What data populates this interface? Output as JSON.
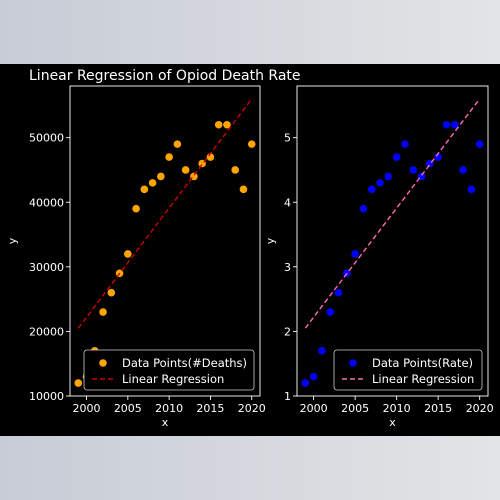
{
  "title": "Linear Regression of Opiod Death Rate",
  "chart_data": [
    {
      "type": "scatter",
      "xlabel": "x",
      "ylabel": "y",
      "xlim": [
        1998,
        2021
      ],
      "ylim": [
        10000,
        58000
      ],
      "xticks": [
        2000,
        2005,
        2010,
        2015,
        2020
      ],
      "yticks": [
        10000,
        20000,
        30000,
        40000,
        50000
      ],
      "legend_position": "lower-right",
      "series": [
        {
          "name": "Data Points(#Deaths)",
          "kind": "points",
          "color": "#ffa500",
          "x": [
            1999,
            2000,
            2001,
            2002,
            2003,
            2004,
            2005,
            2006,
            2007,
            2008,
            2009,
            2010,
            2011,
            2012,
            2013,
            2014,
            2015,
            2016,
            2017,
            2018,
            2019,
            2020
          ],
          "y": [
            12000,
            13000,
            17000,
            23000,
            26000,
            29000,
            32000,
            39000,
            42000,
            43000,
            44000,
            47000,
            49000,
            45000,
            44000,
            46000,
            47000,
            52000,
            52000,
            45000,
            42000,
            49000
          ]
        },
        {
          "name": "Linear Regression",
          "kind": "line",
          "style": "dashed",
          "color": "#cc0000",
          "x": [
            1999,
            2020
          ],
          "y": [
            20500,
            56000
          ]
        }
      ]
    },
    {
      "type": "scatter",
      "xlabel": "x",
      "ylabel": "y",
      "xlim": [
        1998,
        2021
      ],
      "ylim": [
        1,
        5.8
      ],
      "xticks": [
        2000,
        2005,
        2010,
        2015,
        2020
      ],
      "yticks": [
        1,
        2,
        3,
        4,
        5
      ],
      "legend_position": "lower-right",
      "series": [
        {
          "name": "Data Points(Rate)",
          "kind": "points",
          "color": "#0000ff",
          "x": [
            1999,
            2000,
            2001,
            2002,
            2003,
            2004,
            2005,
            2006,
            2007,
            2008,
            2009,
            2010,
            2011,
            2012,
            2013,
            2014,
            2015,
            2016,
            2017,
            2018,
            2019,
            2020
          ],
          "y": [
            1.2,
            1.3,
            1.7,
            2.3,
            2.6,
            2.9,
            3.2,
            3.9,
            4.2,
            4.3,
            4.4,
            4.7,
            4.9,
            4.5,
            4.4,
            4.6,
            4.7,
            5.2,
            5.2,
            4.5,
            4.2,
            4.9
          ]
        },
        {
          "name": "Linear Regression",
          "kind": "line",
          "style": "dashed",
          "color": "#ff69b4",
          "x": [
            1999,
            2020
          ],
          "y": [
            2.05,
            5.6
          ]
        }
      ]
    }
  ]
}
